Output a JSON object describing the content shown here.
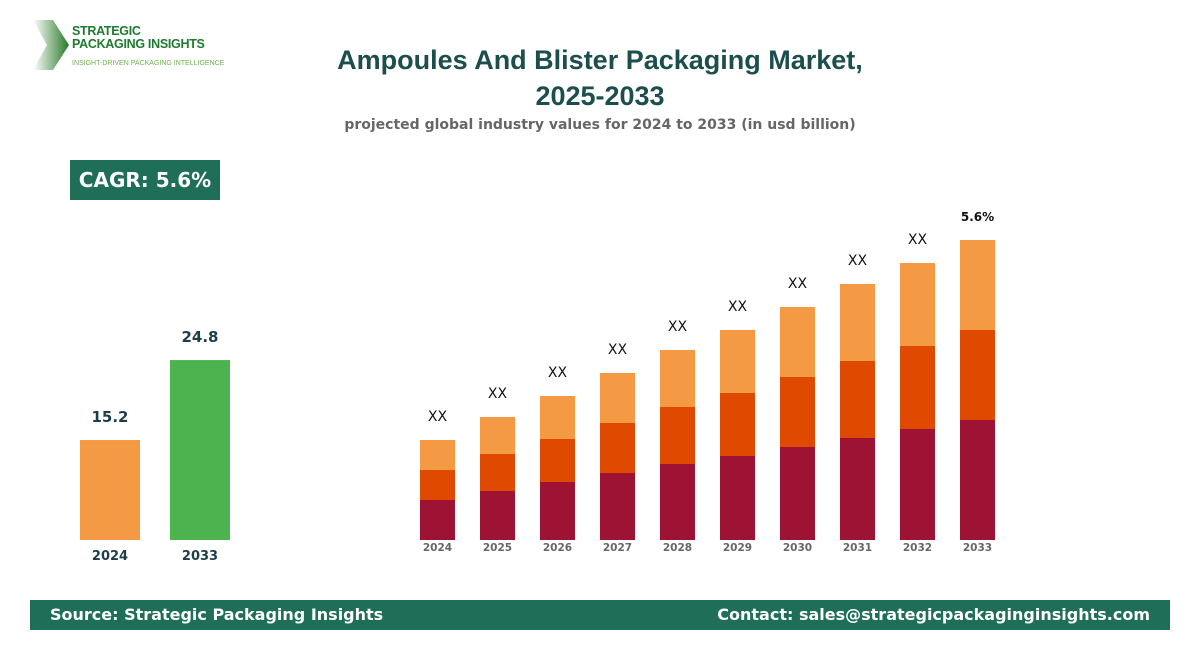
{
  "logo": {
    "line1": "STRATEGIC",
    "line2": "PACKAGING INSIGHTS",
    "tagline": "INSIGHT-DRIVEN PACKAGING INTELLIGENCE"
  },
  "header": {
    "title_line1": "Ampoules And Blister Packaging Market,",
    "title_line2": "2025-2033",
    "subtitle": "projected global industry values for 2024 to 2033 (in usd billion)"
  },
  "cagr_badge": "CAGR: 5.6%",
  "chart_data": [
    {
      "type": "bar",
      "categories": [
        "2024",
        "2033"
      ],
      "values": [
        15.2,
        24.8
      ],
      "data_labels": [
        "15.2",
        "24.8"
      ],
      "colors": [
        "#f49a45",
        "#4cb34f"
      ]
    },
    {
      "type": "bar",
      "stacked": true,
      "categories": [
        "2024",
        "2025",
        "2026",
        "2027",
        "2028",
        "2029",
        "2030",
        "2031",
        "2032",
        "2033"
      ],
      "series": [
        {
          "color": "#9e1233",
          "values": [
            40,
            49,
            58,
            67,
            76,
            84,
            93,
            102,
            111,
            120
          ]
        },
        {
          "color": "#e04a00",
          "values": [
            30,
            37,
            43,
            50,
            57,
            63,
            70,
            77,
            83,
            90
          ]
        },
        {
          "color": "#f49a45",
          "values": [
            30,
            37,
            43,
            50,
            57,
            63,
            70,
            77,
            83,
            90
          ]
        }
      ],
      "data_labels": [
        "XX",
        "XX",
        "XX",
        "XX",
        "XX",
        "XX",
        "XX",
        "XX",
        "XX",
        "5.6%"
      ],
      "ylim": [
        0,
        300
      ],
      "grid": false,
      "legend": "none"
    }
  ],
  "footer": {
    "source": "Source: Strategic Packaging Insights",
    "contact": "Contact: sales@strategicpackaginginsights.com"
  }
}
